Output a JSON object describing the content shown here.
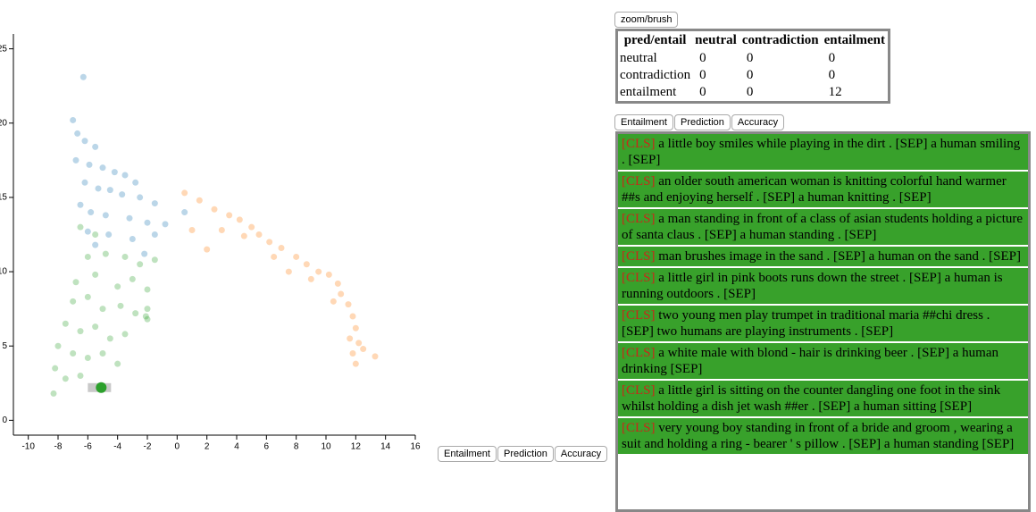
{
  "chart_data": {
    "type": "scatter",
    "xlim": [
      -11,
      16
    ],
    "ylim": [
      -1,
      26
    ],
    "xticks": [
      -10,
      -8,
      -6,
      -4,
      -2,
      0,
      2,
      4,
      6,
      8,
      10,
      12,
      14,
      16
    ],
    "yticks": [
      0,
      5,
      10,
      15,
      20,
      25
    ],
    "series": [
      {
        "color": "#1f77b4",
        "x": [
          -6.3,
          -7,
          -6.7,
          -6.2,
          -5.5,
          -6.8,
          -5.9,
          -5,
          -4.2,
          -3.5,
          -2.8,
          -6.2,
          -5.3,
          -4.5,
          -3.7,
          -2.5,
          -1.5,
          -6.5,
          -5.8,
          -4.8,
          -3.2,
          -2,
          -0.8,
          -6,
          -4.6,
          -3,
          -1.5,
          0.5,
          -5.5,
          -2.2
        ],
        "y": [
          23.1,
          20.2,
          19.3,
          18.8,
          18.4,
          17.5,
          17.2,
          17,
          16.7,
          16.5,
          16,
          16,
          15.6,
          15.5,
          15.2,
          15,
          14.6,
          14.5,
          14,
          13.8,
          13.6,
          13.3,
          13.2,
          12.7,
          12.5,
          12.2,
          12.5,
          14,
          11.8,
          11.2
        ]
      },
      {
        "color": "#ff7f0e",
        "x": [
          0.5,
          1.5,
          2.5,
          3.5,
          4.2,
          5,
          3,
          4.5,
          5.5,
          6.2,
          7,
          6.5,
          8,
          8.7,
          9.5,
          9,
          10.2,
          10.8,
          11,
          10.5,
          11.5,
          11.8,
          12,
          11.6,
          12.2,
          11.8,
          12,
          13.3,
          12.5,
          2,
          1,
          7.5
        ],
        "y": [
          15.3,
          14.8,
          14.2,
          13.8,
          13.5,
          13,
          12.8,
          12.4,
          12.5,
          12,
          11.6,
          11,
          11,
          10.5,
          10,
          9.5,
          9.8,
          9.2,
          8.5,
          8,
          7.8,
          7,
          6.2,
          5.5,
          5.2,
          4.5,
          3.8,
          4.3,
          4.8,
          11.5,
          12.8,
          10
        ]
      },
      {
        "color": "#2ca02c",
        "x": [
          -6.5,
          -5.5,
          -6,
          -4.8,
          -3.5,
          -2.5,
          -1.5,
          -6.8,
          -5.5,
          -4,
          -3,
          -2,
          -7,
          -6,
          -5,
          -3.8,
          -2.8,
          -2,
          -7.5,
          -6.5,
          -5.5,
          -4.5,
          -3.5,
          -8,
          -7,
          -6,
          -5,
          -4,
          -8.2,
          -7.5,
          -6.5,
          -8.3,
          -2,
          -2.1
        ],
        "y": [
          13,
          12.5,
          11,
          11.2,
          11,
          10.5,
          10.8,
          9.3,
          9.8,
          9,
          9.5,
          8.8,
          8,
          8.3,
          7.5,
          7.7,
          7.2,
          6.8,
          6.5,
          6,
          6.3,
          5.5,
          5.8,
          5,
          4.5,
          4.2,
          4.5,
          3.8,
          3.5,
          2.8,
          3,
          1.8,
          7.5,
          7
        ]
      }
    ],
    "highlight": {
      "x": -5.1,
      "y": 2.2,
      "color": "#2ca02c"
    }
  },
  "bottom_tabs": [
    "Entailment",
    "Prediction",
    "Accuracy"
  ],
  "zoom_button": "zoom/brush",
  "confusion_table": {
    "header": [
      "pred/entail",
      "neutral",
      "contradiction",
      "entailment"
    ],
    "rows": [
      [
        "neutral",
        0,
        0,
        0
      ],
      [
        "contradiction",
        0,
        0,
        0
      ],
      [
        "entailment",
        0,
        0,
        12
      ]
    ]
  },
  "list_tabs": [
    "Entailment",
    "Prediction",
    "Accuracy"
  ],
  "examples": [
    {
      "tag": "[CLS]",
      "text": "a little boy smiles while playing in the dirt . [SEP] a human smiling . [SEP]"
    },
    {
      "tag": "[CLS]",
      "text": "an older south american woman is knitting colorful hand warmer ##s and enjoying herself . [SEP] a human knitting . [SEP]"
    },
    {
      "tag": "[CLS]",
      "text": "a man standing in front of a class of asian students holding a picture of santa claus . [SEP] a human standing . [SEP]"
    },
    {
      "tag": "[CLS]",
      "text": "man brushes image in the sand . [SEP] a human on the sand . [SEP]"
    },
    {
      "tag": "[CLS]",
      "text": "a little girl in pink boots runs down the street . [SEP] a human is running outdoors . [SEP]"
    },
    {
      "tag": "[CLS]",
      "text": "two young men play trumpet in traditional maria ##chi dress . [SEP] two humans are playing instruments . [SEP]"
    },
    {
      "tag": "[CLS]",
      "text": "a white male with blond - hair is drinking beer . [SEP] a human drinking [SEP]"
    },
    {
      "tag": "[CLS]",
      "text": "a little girl is sitting on the counter dangling one foot in the sink whilst holding a dish jet wash ##er . [SEP] a human sitting [SEP]"
    },
    {
      "tag": "[CLS]",
      "text": "very young boy standing in front of a bride and groom , wearing a suit and holding a ring - bearer ' s pillow . [SEP] a human standing [SEP]"
    }
  ]
}
